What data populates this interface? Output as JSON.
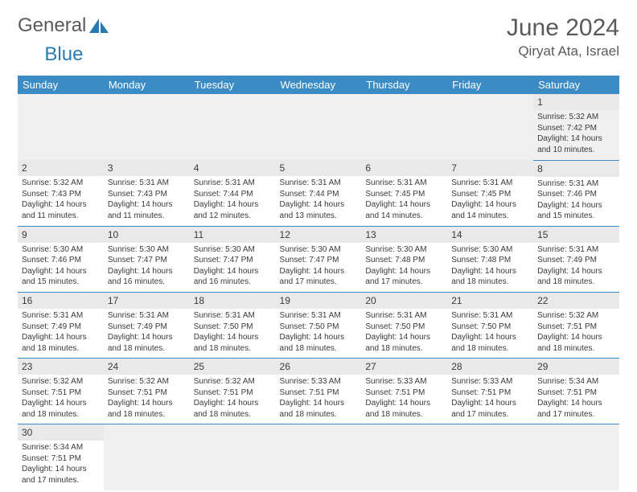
{
  "brand": {
    "part1": "General",
    "part2": "Blue"
  },
  "header": {
    "month_title": "June 2024",
    "location": "Qiryat Ata, Israel"
  },
  "calendar": {
    "header_bg": "#3b8bc4",
    "header_fg": "#ffffff",
    "daynum_bg": "#e9e9e9",
    "columns": [
      "Sunday",
      "Monday",
      "Tuesday",
      "Wednesday",
      "Thursday",
      "Friday",
      "Saturday"
    ],
    "weeks": [
      [
        null,
        null,
        null,
        null,
        null,
        null,
        {
          "n": "1",
          "sunrise": "Sunrise: 5:32 AM",
          "sunset": "Sunset: 7:42 PM",
          "daylight": "Daylight: 14 hours and 10 minutes."
        }
      ],
      [
        {
          "n": "2",
          "sunrise": "Sunrise: 5:32 AM",
          "sunset": "Sunset: 7:43 PM",
          "daylight": "Daylight: 14 hours and 11 minutes."
        },
        {
          "n": "3",
          "sunrise": "Sunrise: 5:31 AM",
          "sunset": "Sunset: 7:43 PM",
          "daylight": "Daylight: 14 hours and 11 minutes."
        },
        {
          "n": "4",
          "sunrise": "Sunrise: 5:31 AM",
          "sunset": "Sunset: 7:44 PM",
          "daylight": "Daylight: 14 hours and 12 minutes."
        },
        {
          "n": "5",
          "sunrise": "Sunrise: 5:31 AM",
          "sunset": "Sunset: 7:44 PM",
          "daylight": "Daylight: 14 hours and 13 minutes."
        },
        {
          "n": "6",
          "sunrise": "Sunrise: 5:31 AM",
          "sunset": "Sunset: 7:45 PM",
          "daylight": "Daylight: 14 hours and 14 minutes."
        },
        {
          "n": "7",
          "sunrise": "Sunrise: 5:31 AM",
          "sunset": "Sunset: 7:45 PM",
          "daylight": "Daylight: 14 hours and 14 minutes."
        },
        {
          "n": "8",
          "sunrise": "Sunrise: 5:31 AM",
          "sunset": "Sunset: 7:46 PM",
          "daylight": "Daylight: 14 hours and 15 minutes."
        }
      ],
      [
        {
          "n": "9",
          "sunrise": "Sunrise: 5:30 AM",
          "sunset": "Sunset: 7:46 PM",
          "daylight": "Daylight: 14 hours and 15 minutes."
        },
        {
          "n": "10",
          "sunrise": "Sunrise: 5:30 AM",
          "sunset": "Sunset: 7:47 PM",
          "daylight": "Daylight: 14 hours and 16 minutes."
        },
        {
          "n": "11",
          "sunrise": "Sunrise: 5:30 AM",
          "sunset": "Sunset: 7:47 PM",
          "daylight": "Daylight: 14 hours and 16 minutes."
        },
        {
          "n": "12",
          "sunrise": "Sunrise: 5:30 AM",
          "sunset": "Sunset: 7:47 PM",
          "daylight": "Daylight: 14 hours and 17 minutes."
        },
        {
          "n": "13",
          "sunrise": "Sunrise: 5:30 AM",
          "sunset": "Sunset: 7:48 PM",
          "daylight": "Daylight: 14 hours and 17 minutes."
        },
        {
          "n": "14",
          "sunrise": "Sunrise: 5:30 AM",
          "sunset": "Sunset: 7:48 PM",
          "daylight": "Daylight: 14 hours and 18 minutes."
        },
        {
          "n": "15",
          "sunrise": "Sunrise: 5:31 AM",
          "sunset": "Sunset: 7:49 PM",
          "daylight": "Daylight: 14 hours and 18 minutes."
        }
      ],
      [
        {
          "n": "16",
          "sunrise": "Sunrise: 5:31 AM",
          "sunset": "Sunset: 7:49 PM",
          "daylight": "Daylight: 14 hours and 18 minutes."
        },
        {
          "n": "17",
          "sunrise": "Sunrise: 5:31 AM",
          "sunset": "Sunset: 7:49 PM",
          "daylight": "Daylight: 14 hours and 18 minutes."
        },
        {
          "n": "18",
          "sunrise": "Sunrise: 5:31 AM",
          "sunset": "Sunset: 7:50 PM",
          "daylight": "Daylight: 14 hours and 18 minutes."
        },
        {
          "n": "19",
          "sunrise": "Sunrise: 5:31 AM",
          "sunset": "Sunset: 7:50 PM",
          "daylight": "Daylight: 14 hours and 18 minutes."
        },
        {
          "n": "20",
          "sunrise": "Sunrise: 5:31 AM",
          "sunset": "Sunset: 7:50 PM",
          "daylight": "Daylight: 14 hours and 18 minutes."
        },
        {
          "n": "21",
          "sunrise": "Sunrise: 5:31 AM",
          "sunset": "Sunset: 7:50 PM",
          "daylight": "Daylight: 14 hours and 18 minutes."
        },
        {
          "n": "22",
          "sunrise": "Sunrise: 5:32 AM",
          "sunset": "Sunset: 7:51 PM",
          "daylight": "Daylight: 14 hours and 18 minutes."
        }
      ],
      [
        {
          "n": "23",
          "sunrise": "Sunrise: 5:32 AM",
          "sunset": "Sunset: 7:51 PM",
          "daylight": "Daylight: 14 hours and 18 minutes."
        },
        {
          "n": "24",
          "sunrise": "Sunrise: 5:32 AM",
          "sunset": "Sunset: 7:51 PM",
          "daylight": "Daylight: 14 hours and 18 minutes."
        },
        {
          "n": "25",
          "sunrise": "Sunrise: 5:32 AM",
          "sunset": "Sunset: 7:51 PM",
          "daylight": "Daylight: 14 hours and 18 minutes."
        },
        {
          "n": "26",
          "sunrise": "Sunrise: 5:33 AM",
          "sunset": "Sunset: 7:51 PM",
          "daylight": "Daylight: 14 hours and 18 minutes."
        },
        {
          "n": "27",
          "sunrise": "Sunrise: 5:33 AM",
          "sunset": "Sunset: 7:51 PM",
          "daylight": "Daylight: 14 hours and 18 minutes."
        },
        {
          "n": "28",
          "sunrise": "Sunrise: 5:33 AM",
          "sunset": "Sunset: 7:51 PM",
          "daylight": "Daylight: 14 hours and 17 minutes."
        },
        {
          "n": "29",
          "sunrise": "Sunrise: 5:34 AM",
          "sunset": "Sunset: 7:51 PM",
          "daylight": "Daylight: 14 hours and 17 minutes."
        }
      ],
      [
        {
          "n": "30",
          "sunrise": "Sunrise: 5:34 AM",
          "sunset": "Sunset: 7:51 PM",
          "daylight": "Daylight: 14 hours and 17 minutes."
        },
        null,
        null,
        null,
        null,
        null,
        null
      ]
    ]
  }
}
